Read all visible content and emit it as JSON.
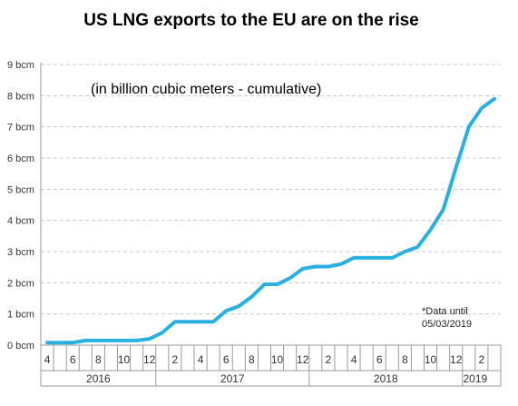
{
  "chart_data": {
    "type": "line",
    "title": "US LNG exports to the EU are on the rise",
    "subtitle": "(in billion cubic meters - cumulative)",
    "note": [
      "*Data until",
      "05/03/2019"
    ],
    "colors": {
      "line": "#2ab0e0"
    },
    "ylim": [
      0,
      9
    ],
    "y_ticks": [
      "0 bcm",
      "1 bcm",
      "2 bcm",
      "3 bcm",
      "4 bcm",
      "5 bcm",
      "6 bcm",
      "7 bcm",
      "8 bcm",
      "9 bcm"
    ],
    "grid": true,
    "x_tick_labels": [
      "4",
      "",
      "6",
      "",
      "8",
      "",
      "10",
      "",
      "12",
      "",
      "2",
      "",
      "4",
      "",
      "6",
      "",
      "8",
      "",
      "10",
      "",
      "12",
      "",
      "2",
      "",
      "4",
      "",
      "6",
      "",
      "8",
      "",
      "10",
      "",
      "12",
      "",
      "2",
      ""
    ],
    "years": [
      {
        "label": "2016",
        "start": 0,
        "end": 9
      },
      {
        "label": "2017",
        "start": 9,
        "end": 21
      },
      {
        "label": "2018",
        "start": 21,
        "end": 33
      },
      {
        "label": "2019",
        "start": 33,
        "end": 35
      }
    ],
    "series": [
      {
        "values": [
          0.08,
          0.08,
          0.08,
          0.15,
          0.15,
          0.15,
          0.15,
          0.15,
          0.2,
          0.4,
          0.75,
          0.75,
          0.75,
          0.75,
          1.1,
          1.25,
          1.55,
          1.95,
          1.95,
          2.15,
          2.45,
          2.52,
          2.52,
          2.6,
          2.8,
          2.8,
          2.8,
          2.8,
          3.0,
          3.15,
          3.7,
          4.35,
          5.7,
          7.0,
          7.6,
          7.9
        ]
      }
    ]
  }
}
